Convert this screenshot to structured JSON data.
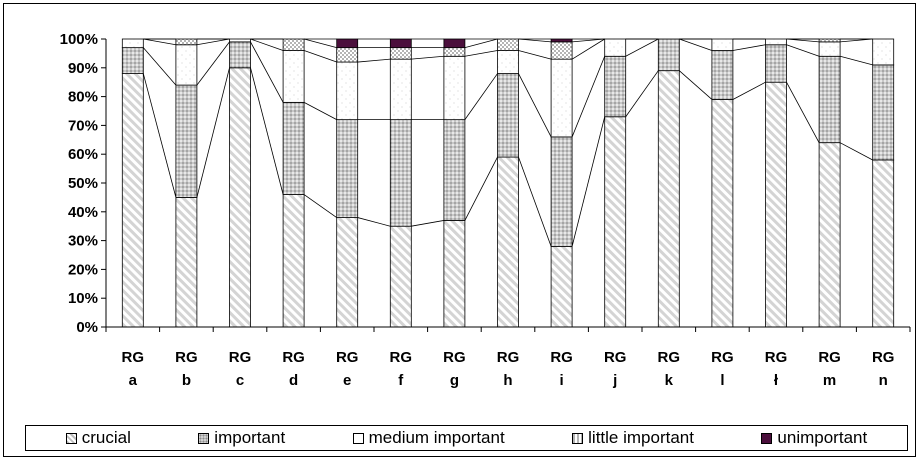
{
  "chart_data": {
    "type": "bar",
    "stacked": true,
    "percent_stacked": true,
    "categories": [
      [
        "RG",
        "a"
      ],
      [
        "RG",
        "b"
      ],
      [
        "RG",
        "c"
      ],
      [
        "RG",
        "d"
      ],
      [
        "RG",
        "e"
      ],
      [
        "RG",
        "f"
      ],
      [
        "RG",
        "g"
      ],
      [
        "RG",
        "h"
      ],
      [
        "RG",
        "i"
      ],
      [
        "RG",
        "j"
      ],
      [
        "RG",
        "k"
      ],
      [
        "RG",
        "l"
      ],
      [
        "RG",
        "ł"
      ],
      [
        "RG",
        "m"
      ],
      [
        "RG",
        "n"
      ]
    ],
    "series": [
      {
        "name": "crucial",
        "values": [
          88,
          45,
          90,
          46,
          38,
          35,
          37,
          59,
          28,
          73,
          89,
          79,
          85,
          64,
          58
        ]
      },
      {
        "name": "important",
        "values": [
          9,
          39,
          9,
          32,
          34,
          37,
          35,
          29,
          38,
          21,
          11,
          17,
          13,
          30,
          33
        ]
      },
      {
        "name": "medium important",
        "values": [
          3,
          14,
          1,
          18,
          20,
          21,
          22,
          8,
          27,
          6,
          0,
          4,
          2,
          5,
          9
        ]
      },
      {
        "name": "little important",
        "values": [
          0,
          2,
          0,
          4,
          5,
          4,
          3,
          4,
          6,
          0,
          0,
          0,
          0,
          1,
          0
        ]
      },
      {
        "name": "unimportant",
        "values": [
          0,
          0,
          0,
          0,
          3,
          3,
          3,
          0,
          1,
          0,
          0,
          0,
          0,
          0,
          0
        ]
      }
    ],
    "ylim": [
      0,
      100
    ],
    "yticks": [
      "0%",
      "10%",
      "20%",
      "30%",
      "40%",
      "50%",
      "60%",
      "70%",
      "80%",
      "90%",
      "100%"
    ],
    "grid": false,
    "series_lines": true,
    "legend_position": "bottom",
    "colors": {
      "crucial": "#d4d4d4",
      "important": "#a8a8a8",
      "medium important": "#ffffff",
      "little important": "#e6e6e6",
      "unimportant": "#4b0f3c"
    }
  }
}
